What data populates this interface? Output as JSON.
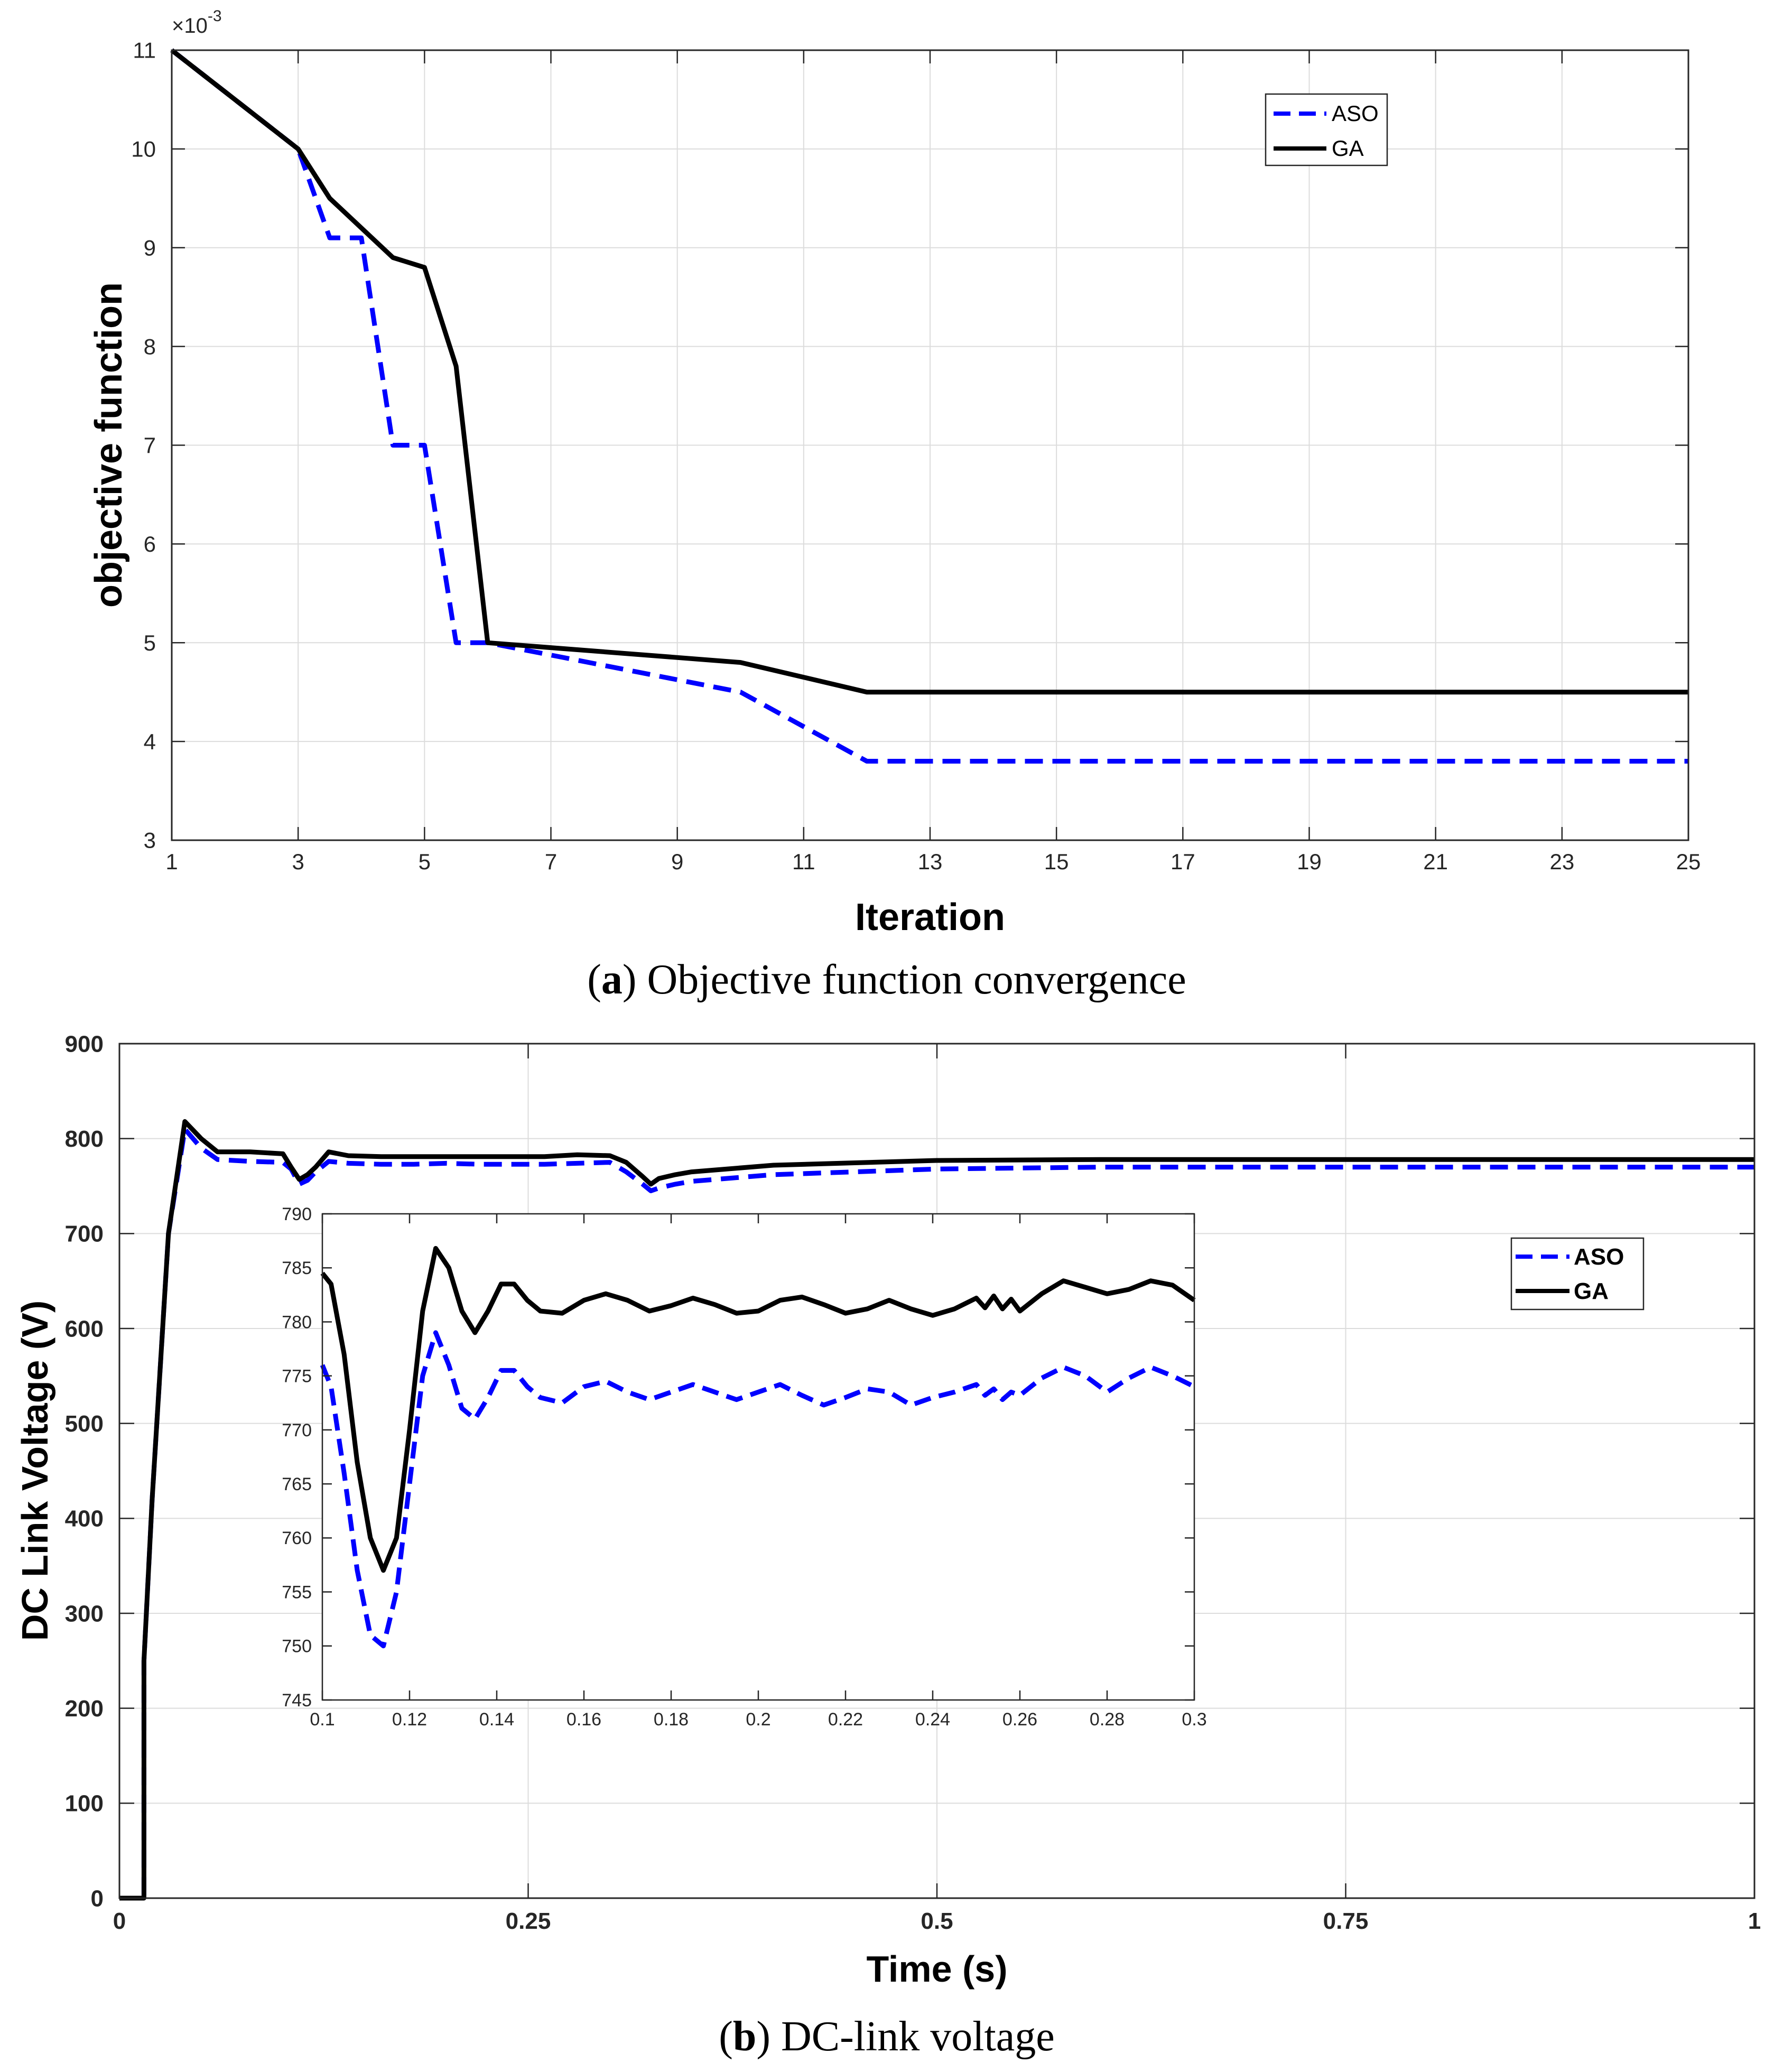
{
  "colors": {
    "aso": "#0000ff",
    "ga": "#000000",
    "grid": "#dcdcdc",
    "axis": "#262626"
  },
  "chart_data": [
    {
      "id": "a",
      "type": "line",
      "ylabel": "objective function",
      "xlabel": "Iteration",
      "exponent_label": "×10",
      "exponent_power": "-3",
      "xlim": [
        1,
        25
      ],
      "ylim": [
        3,
        11
      ],
      "xticks": [
        1,
        3,
        5,
        7,
        9,
        11,
        13,
        15,
        17,
        19,
        21,
        23,
        25
      ],
      "yticks": [
        3,
        4,
        5,
        6,
        7,
        8,
        9,
        10,
        11
      ],
      "grid": true,
      "legend": {
        "position": "top-right",
        "entries": [
          "ASO",
          "GA"
        ]
      },
      "series": [
        {
          "name": "ASO",
          "style": "dashed",
          "x": [
            1,
            3,
            3.5,
            4,
            4.5,
            5,
            5.5,
            6,
            10,
            12,
            25
          ],
          "y": [
            11,
            10,
            9.1,
            9.1,
            7.0,
            7.0,
            5.0,
            5.0,
            4.5,
            3.8,
            3.8
          ]
        },
        {
          "name": "GA",
          "style": "solid",
          "x": [
            1,
            3,
            3.5,
            4.5,
            5,
            5.5,
            6,
            10,
            12,
            25
          ],
          "y": [
            11,
            10,
            9.5,
            8.9,
            8.8,
            7.8,
            5.0,
            4.8,
            4.5,
            4.5
          ]
        }
      ],
      "caption_letter": "a",
      "caption_text": ") Objective function convergence"
    },
    {
      "id": "b",
      "type": "line",
      "ylabel": "DC Link Voltage (V)",
      "xlabel": "Time (s)",
      "xlim": [
        0,
        1
      ],
      "ylim": [
        0,
        900
      ],
      "xticks": [
        "0",
        "0.25",
        "0.5",
        "0.75",
        "1"
      ],
      "yticks": [
        0,
        100,
        200,
        300,
        400,
        500,
        600,
        700,
        800,
        900
      ],
      "grid": true,
      "legend": {
        "position": "top-right",
        "entries": [
          "ASO",
          "GA"
        ]
      },
      "series": [
        {
          "name": "ASO",
          "style": "dashed",
          "x": [
            0,
            0.015,
            0.015,
            0.02,
            0.03,
            0.04,
            0.05,
            0.06,
            0.08,
            0.1,
            0.105,
            0.11,
            0.115,
            0.12,
            0.128,
            0.14,
            0.16,
            0.18,
            0.2,
            0.22,
            0.24,
            0.26,
            0.28,
            0.3,
            0.31,
            0.32,
            0.325,
            0.33,
            0.34,
            0.35,
            0.4,
            0.5,
            0.6,
            0.8,
            1.0
          ],
          "y": [
            0,
            0,
            250,
            420,
            700,
            810,
            790,
            778,
            776,
            775,
            768,
            752,
            756,
            765,
            776,
            774,
            773,
            773,
            774,
            773,
            773,
            773,
            774,
            775,
            765,
            752,
            745,
            748,
            752,
            755,
            762,
            768,
            770,
            770,
            770
          ]
        },
        {
          "name": "GA",
          "style": "solid",
          "x": [
            0,
            0.015,
            0.015,
            0.02,
            0.03,
            0.04,
            0.05,
            0.06,
            0.08,
            0.1,
            0.105,
            0.11,
            0.115,
            0.12,
            0.128,
            0.14,
            0.16,
            0.18,
            0.2,
            0.22,
            0.24,
            0.26,
            0.28,
            0.3,
            0.31,
            0.32,
            0.325,
            0.33,
            0.34,
            0.35,
            0.4,
            0.5,
            0.6,
            0.8,
            1.0
          ],
          "y": [
            0,
            0,
            250,
            420,
            700,
            818,
            800,
            786,
            786,
            784,
            770,
            757,
            762,
            770,
            786,
            782,
            781,
            781,
            781,
            781,
            781,
            781,
            783,
            782,
            775,
            760,
            752,
            758,
            762,
            765,
            772,
            777,
            778,
            778,
            778
          ]
        }
      ],
      "inset": {
        "xlim": [
          0.1,
          0.3
        ],
        "ylim": [
          745,
          790
        ],
        "xticks": [
          "0.1",
          "0.12",
          "0.14",
          "0.16",
          "0.18",
          "0.2",
          "0.22",
          "0.24",
          "0.26",
          "0.28",
          "0.3"
        ],
        "yticks": [
          745,
          750,
          755,
          760,
          765,
          770,
          775,
          780,
          785,
          790
        ],
        "series": [
          {
            "name": "ASO",
            "style": "dashed",
            "x": [
              0.1,
              0.102,
              0.105,
              0.108,
              0.111,
              0.114,
              0.117,
              0.12,
              0.123,
              0.126,
              0.129,
              0.132,
              0.135,
              0.138,
              0.141,
              0.144,
              0.147,
              0.15,
              0.155,
              0.16,
              0.165,
              0.17,
              0.175,
              0.18,
              0.185,
              0.19,
              0.195,
              0.2,
              0.205,
              0.21,
              0.215,
              0.22,
              0.225,
              0.23,
              0.235,
              0.24,
              0.245,
              0.25,
              0.252,
              0.254,
              0.256,
              0.258,
              0.26,
              0.265,
              0.27,
              0.275,
              0.28,
              0.285,
              0.29,
              0.295,
              0.3
            ],
            "y": [
              776,
              774,
              766,
              757,
              751,
              750,
              755,
              765,
              775,
              779,
              776,
              772,
              771,
              773,
              775.5,
              775.5,
              774,
              773,
              772.5,
              774,
              774.5,
              773.5,
              772.8,
              773.5,
              774.2,
              773.5,
              772.8,
              773.5,
              774.2,
              773.2,
              772.3,
              773,
              773.8,
              773.5,
              772.3,
              773,
              773.5,
              774.2,
              773.2,
              773.8,
              772.8,
              773.5,
              773.2,
              774.8,
              775.8,
              775,
              773.5,
              774.8,
              775.8,
              775,
              774
            ]
          },
          {
            "name": "GA",
            "style": "solid",
            "x": [
              0.1,
              0.102,
              0.105,
              0.108,
              0.111,
              0.114,
              0.117,
              0.12,
              0.123,
              0.126,
              0.129,
              0.132,
              0.135,
              0.138,
              0.141,
              0.144,
              0.147,
              0.15,
              0.155,
              0.16,
              0.165,
              0.17,
              0.175,
              0.18,
              0.185,
              0.19,
              0.195,
              0.2,
              0.205,
              0.21,
              0.215,
              0.22,
              0.225,
              0.23,
              0.235,
              0.24,
              0.245,
              0.25,
              0.252,
              0.254,
              0.256,
              0.258,
              0.26,
              0.265,
              0.27,
              0.275,
              0.28,
              0.285,
              0.29,
              0.295,
              0.3
            ],
            "y": [
              784.5,
              783.5,
              777,
              767,
              760,
              757,
              760,
              770,
              781,
              786.8,
              785,
              781,
              779,
              781,
              783.5,
              783.5,
              782,
              781,
              780.8,
              782,
              782.6,
              782,
              781,
              781.5,
              782.2,
              781.6,
              780.8,
              781,
              782,
              782.3,
              781.6,
              780.8,
              781.2,
              782,
              781.2,
              780.6,
              781.2,
              782.2,
              781.3,
              782.4,
              781.2,
              782.1,
              781,
              782.6,
              783.8,
              783.2,
              782.6,
              783,
              783.8,
              783.4,
              782
            ]
          }
        ]
      },
      "caption_letter": "b",
      "caption_text": ") DC-link voltage"
    }
  ]
}
